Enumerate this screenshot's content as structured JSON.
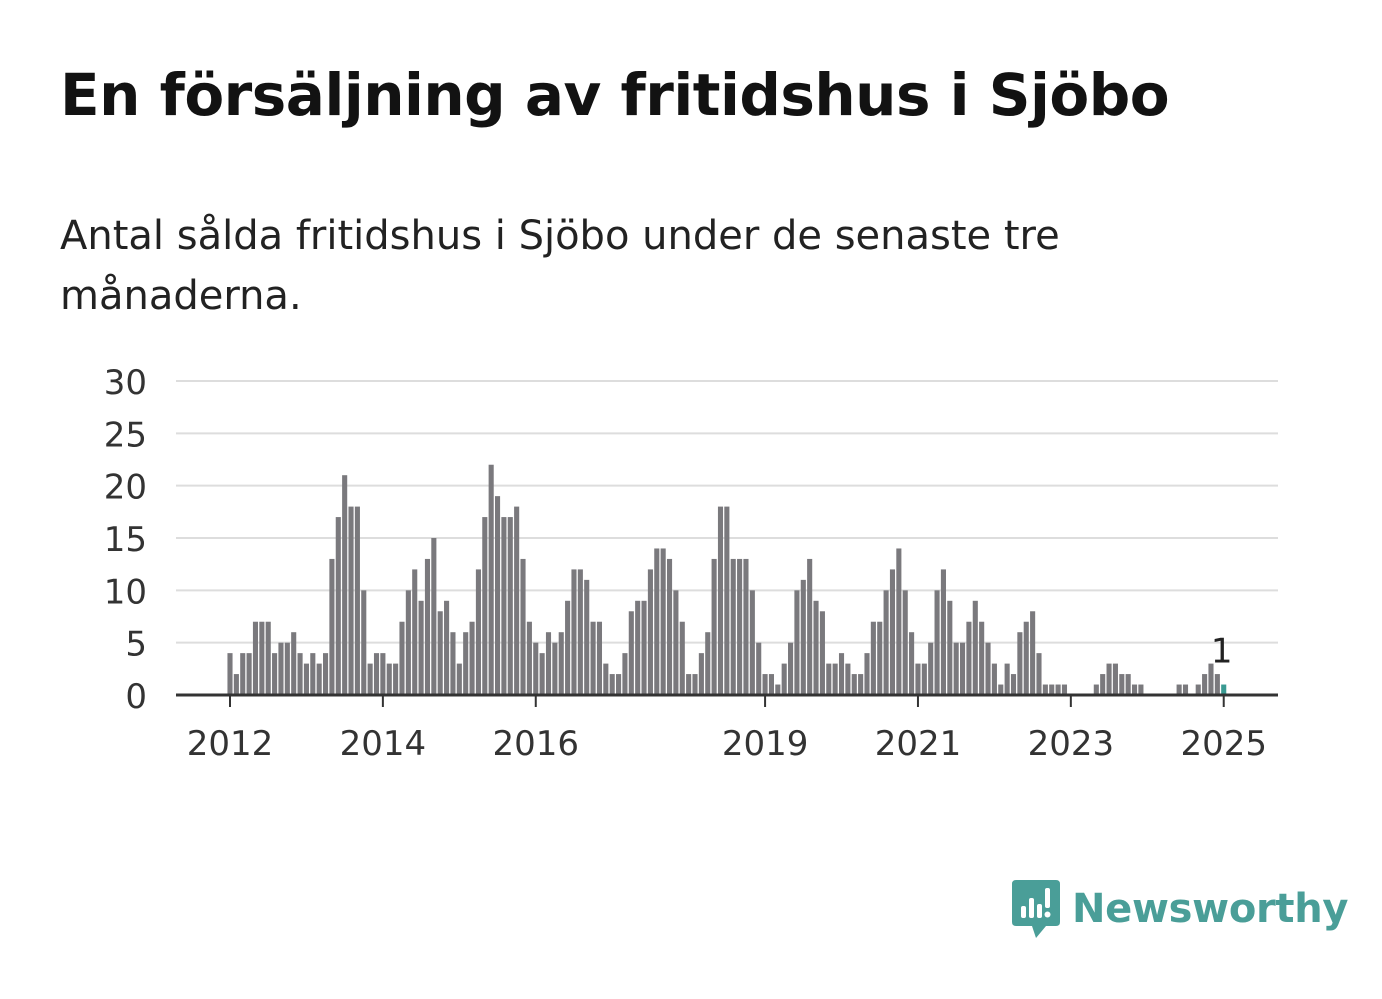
{
  "title": "En försäljning av fritidshus i Sjöbo",
  "subtitle": "Antal sålda fritidshus i Sjöbo under de senaste tre månaderna.",
  "brand": "Newsworthy",
  "colors": {
    "bar": "#7a797d",
    "highlight": "#3a9a92",
    "grid": "#dddddd",
    "axis": "#333333",
    "brand": "#4a9e98"
  },
  "chart_data": {
    "type": "bar",
    "title": "En försäljning av fritidshus i Sjöbo",
    "subtitle": "Antal sålda fritidshus i Sjöbo under de senaste tre månaderna.",
    "xlabel": "",
    "ylabel": "",
    "ylim": [
      0,
      30
    ],
    "yticks": [
      0,
      5,
      10,
      15,
      20,
      25,
      30
    ],
    "xticks": [
      {
        "label": "2012",
        "index": 0
      },
      {
        "label": "2014",
        "index": 24
      },
      {
        "label": "2016",
        "index": 48
      },
      {
        "label": "2019",
        "index": 84
      },
      {
        "label": "2021",
        "index": 108
      },
      {
        "label": "2023",
        "index": 132
      },
      {
        "label": "2025",
        "index": 156
      }
    ],
    "grid": true,
    "legend": "none",
    "start": "2012-01",
    "series": [
      {
        "values": [
          4,
          2,
          4,
          4,
          7,
          7,
          7,
          4,
          5,
          5,
          6,
          4,
          3,
          4,
          3,
          4,
          13,
          17,
          21,
          18,
          18,
          10,
          3,
          4,
          4,
          3,
          3,
          7,
          10,
          12,
          9,
          13,
          15,
          8,
          9,
          6,
          3,
          6,
          7,
          12,
          17,
          22,
          19,
          17,
          17,
          18,
          13,
          7,
          5,
          4,
          6,
          5,
          6,
          9,
          12,
          12,
          11,
          7,
          7,
          3,
          2,
          2,
          4,
          8,
          9,
          9,
          12,
          14,
          14,
          13,
          10,
          7,
          2,
          2,
          4,
          6,
          13,
          18,
          18,
          13,
          13,
          13,
          10,
          5,
          2,
          2,
          1,
          3,
          5,
          10,
          11,
          13,
          9,
          8,
          3,
          3,
          4,
          3,
          2,
          2,
          4,
          7,
          7,
          10,
          12,
          14,
          10,
          6,
          3,
          3,
          5,
          10,
          12,
          9,
          5,
          5,
          7,
          9,
          7,
          5,
          3,
          1,
          3,
          2,
          6,
          7,
          8,
          4,
          1,
          1,
          1,
          1,
          0,
          0,
          0,
          0,
          1,
          2,
          3,
          3,
          2,
          2,
          1,
          1,
          0,
          0,
          0,
          0,
          0,
          1,
          1,
          0,
          1,
          2,
          3,
          2,
          1
        ]
      }
    ],
    "annotation": {
      "index": 156,
      "label": "1"
    }
  }
}
